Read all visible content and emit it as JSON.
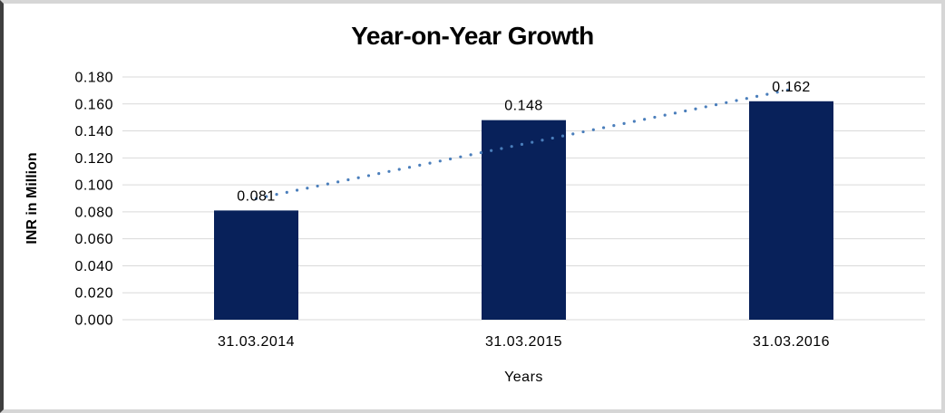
{
  "chart_data": {
    "type": "bar",
    "title": "Year-on-Year Growth",
    "xlabel": "Years",
    "ylabel": "INR in Million",
    "categories": [
      "31.03.2014",
      "31.03.2015",
      "31.03.2016"
    ],
    "values": [
      0.081,
      0.148,
      0.162
    ],
    "data_labels": [
      "0.081",
      "0.148",
      "0.162"
    ],
    "ylim": [
      0,
      0.18
    ],
    "ytick_labels": [
      "0.000",
      "0.020",
      "0.040",
      "0.060",
      "0.080",
      "0.100",
      "0.120",
      "0.140",
      "0.160",
      "0.180"
    ],
    "grid": "horizontal-on",
    "legend_position": "none",
    "bar_color": "#08215a",
    "gridline_color": "#d9d9d9",
    "text_color": "#000000",
    "trendline": {
      "type": "linear",
      "style": "dotted",
      "color": "#4a7ebb"
    }
  }
}
